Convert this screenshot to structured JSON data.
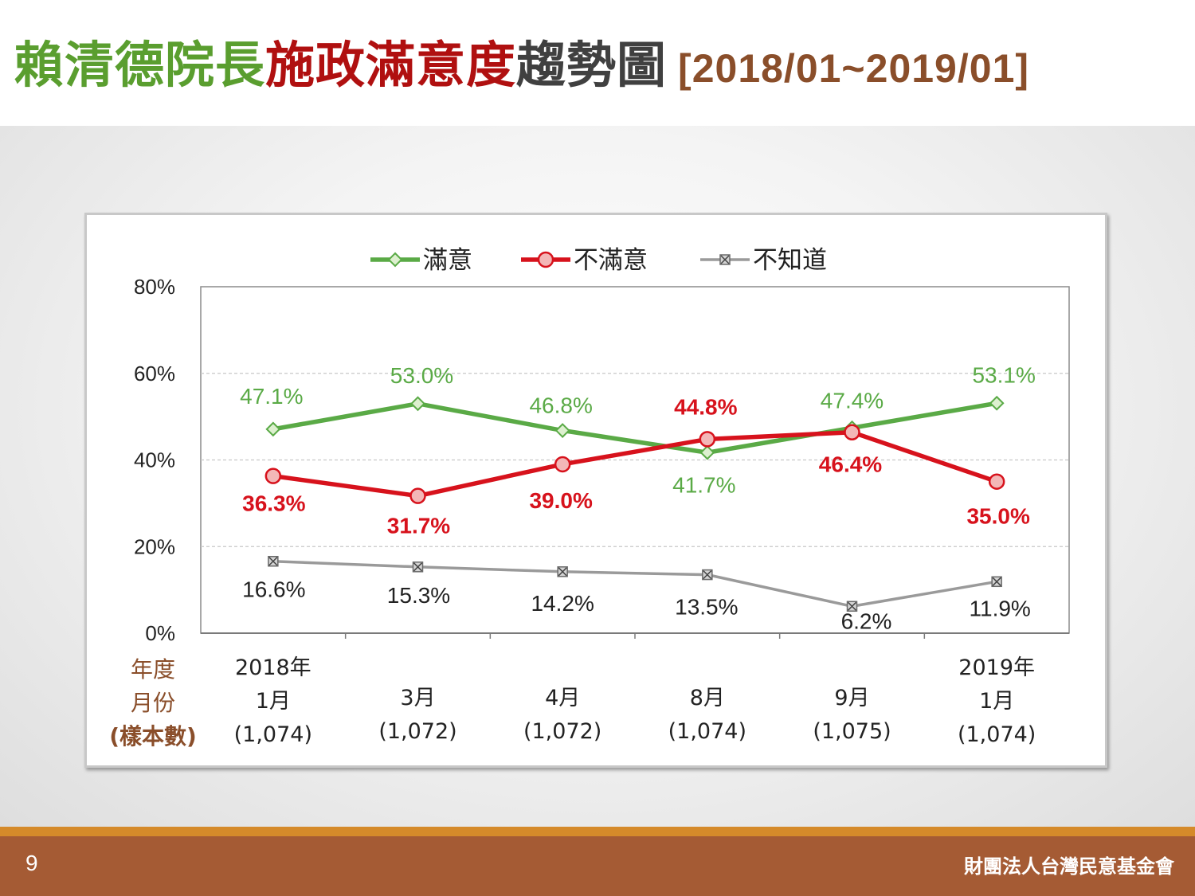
{
  "header": {
    "title_green": "賴清德院長",
    "title_red": "施政滿意度",
    "title_dark": "趨勢圖",
    "title_range": "[2018/01~2019/01]"
  },
  "footer": {
    "page_number": "9",
    "organization": "財團法人台灣民意基金會"
  },
  "colors": {
    "satisfied": "#5aaa46",
    "unsatisfied": "#d7121c",
    "unknown": "#9a9a9a",
    "footer_bg": "#a55b34",
    "footer_strip": "#d58a2a",
    "row_label": "#8a4e2a"
  },
  "chart_data": {
    "type": "line",
    "ylim": [
      0,
      80
    ],
    "y_ticks": [
      "0%",
      "20%",
      "40%",
      "60%",
      "80%"
    ],
    "y_tick_values": [
      0,
      20,
      40,
      60,
      80
    ],
    "row_label": [
      "年度",
      "月份",
      "(樣本數)"
    ],
    "categories": [
      [
        "2018年",
        "1月",
        "(1,074)"
      ],
      [
        "3月",
        "(1,072)"
      ],
      [
        "4月",
        "(1,072)"
      ],
      [
        "8月",
        "(1,074)"
      ],
      [
        "9月",
        "(1,075)"
      ],
      [
        "2019年",
        "1月",
        "(1,074)"
      ]
    ],
    "series": [
      {
        "name": "滿意",
        "marker": "diamond",
        "values": [
          47.1,
          53.0,
          46.8,
          41.7,
          47.4,
          53.1
        ],
        "labels": [
          "47.1%",
          "53.0%",
          "46.8%",
          "41.7%",
          "47.4%",
          "53.1%"
        ]
      },
      {
        "name": "不滿意",
        "marker": "circle",
        "values": [
          36.3,
          31.7,
          39.0,
          44.8,
          46.4,
          35.0
        ],
        "labels": [
          "36.3%",
          "31.7%",
          "39.0%",
          "44.8%",
          "46.4%",
          "35.0%"
        ]
      },
      {
        "name": "不知道",
        "marker": "x-square",
        "values": [
          16.6,
          15.3,
          14.2,
          13.5,
          6.2,
          11.9
        ],
        "labels": [
          "16.6%",
          "15.3%",
          "14.2%",
          "13.5%",
          "6.2%",
          "11.9%"
        ]
      }
    ],
    "grid": true,
    "legend": "top-center"
  }
}
